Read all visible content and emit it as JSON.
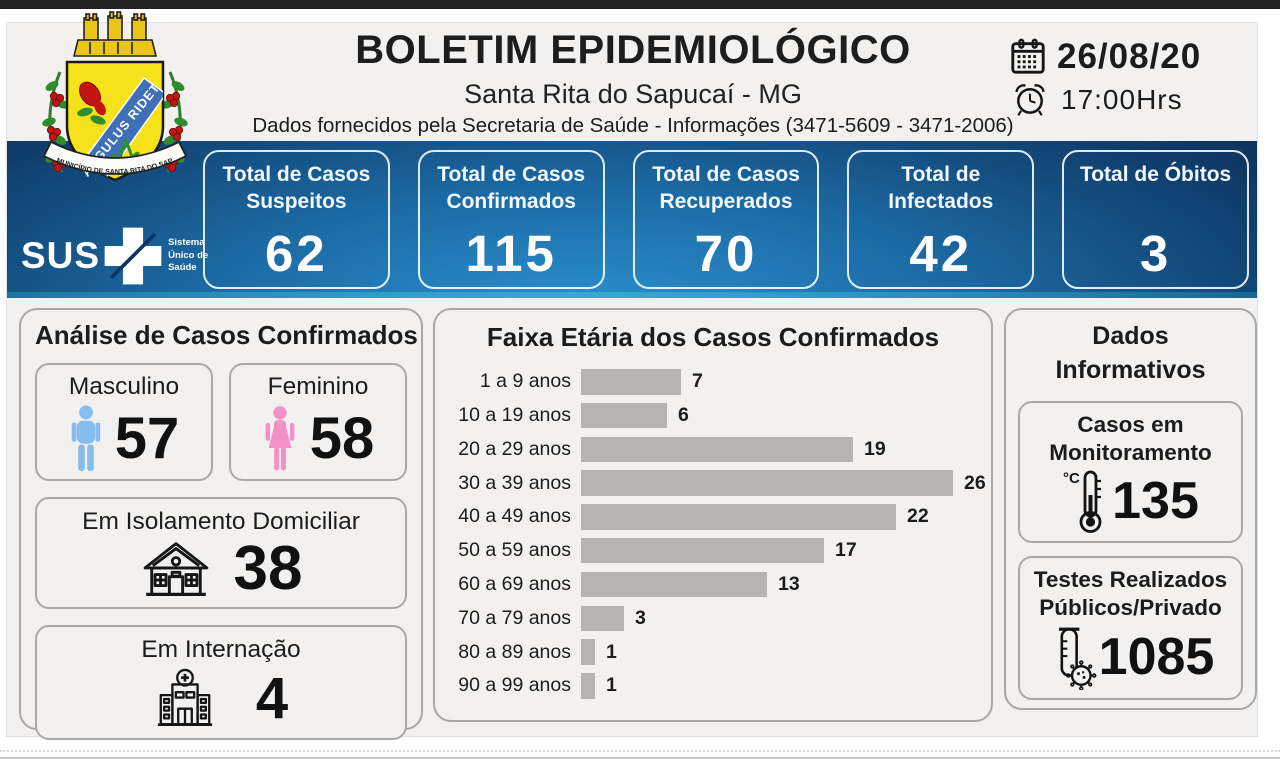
{
  "header": {
    "title": "BOLETIM EPIDEMIOLÓGICO",
    "subtitle": "Santa Rita do Sapucaí - MG",
    "info_line": "Dados fornecidos pela Secretaria de Saúde - Informações (3471-5609 - 3471-2006)",
    "date": "26/08/20",
    "time": "17:00Hrs"
  },
  "coat_of_arms": {
    "motto": "ANGULUS RIDET",
    "ribbon_text": "MUNICÍPIO DE SANTA RITA DO SAPUCAÍ"
  },
  "sus": {
    "name": "SUS",
    "subtitle": "Sistema Único de Saúde"
  },
  "summary_cards": [
    {
      "label": "Total de Casos Suspeitos",
      "value": "62"
    },
    {
      "label": "Total de Casos Confirmados",
      "value": "115"
    },
    {
      "label": "Total de Casos Recuperados",
      "value": "70"
    },
    {
      "label": "Total de Infectados",
      "value": "42"
    },
    {
      "label": "Total de Óbitos",
      "value": "3"
    }
  ],
  "analysis": {
    "title": "Análise de Casos Confirmados",
    "male_label": "Masculino",
    "male_value": "57",
    "female_label": "Feminino",
    "female_value": "58",
    "isolation_label": "Em Isolamento Domiciliar",
    "isolation_value": "38",
    "hospital_label": "Em Internação",
    "hospital_value": "4"
  },
  "chart_data": {
    "type": "bar",
    "orientation": "horizontal",
    "title": "Faixa Etária dos Casos Confirmados",
    "categories": [
      "1 a 9 anos",
      "10 a 19 anos",
      "20 a 29 anos",
      "30 a 39 anos",
      "40 a 49 anos",
      "50 a 59 anos",
      "60 a 69 anos",
      "70 a 79 anos",
      "80 a 89 anos",
      "90 a 99 anos"
    ],
    "values": [
      7,
      6,
      19,
      26,
      22,
      17,
      13,
      3,
      1,
      1
    ],
    "xlim": [
      0,
      26
    ],
    "bar_color": "#b5b4b2",
    "value_labels": true,
    "grid": false,
    "xlabel": "",
    "ylabel": ""
  },
  "informative": {
    "title": "Dados Informativos",
    "monitoring_label": "Casos em Monitoramento",
    "monitoring_value": "135",
    "tests_label": "Testes Realizados Públicos/Privado",
    "tests_value": "1085"
  },
  "icons": {
    "thermometer_unit": "°C",
    "names": [
      "calendar-icon",
      "alarm-clock-icon",
      "sus-cross-icon",
      "male-icon",
      "female-icon",
      "house-icon",
      "hospital-icon",
      "thermometer-icon",
      "test-tube-icon",
      "coat-of-arms"
    ]
  },
  "colors": {
    "banner_dark": "#0a2c50",
    "banner_light": "#2b90cf",
    "banner_bottom_teal": "#34b2d0",
    "panel_bg": "#f2f1ef",
    "bar_gray": "#b5b4b2",
    "male_blue": "#85bdf0",
    "female_pink": "#f291c6",
    "text_dark": "#1c1c1c",
    "top_strip": "#212121"
  }
}
